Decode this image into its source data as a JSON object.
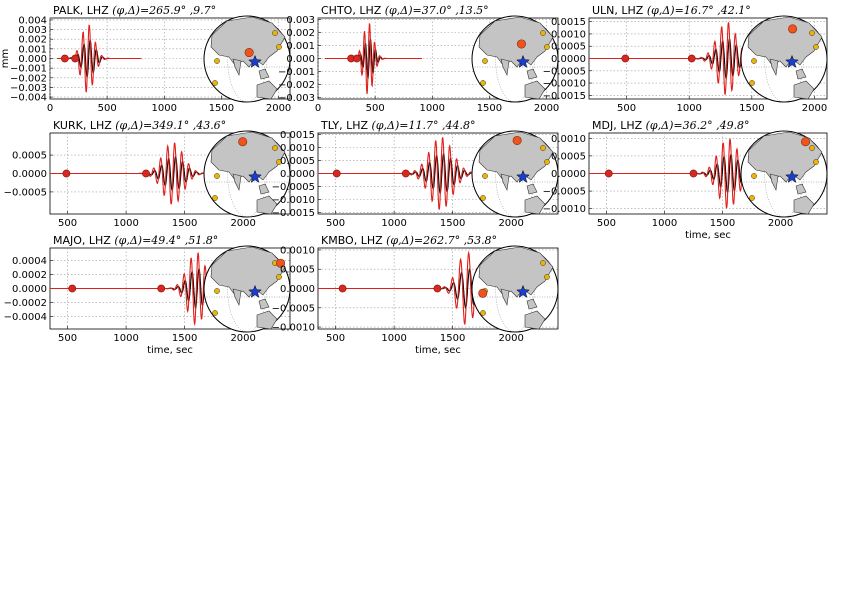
{
  "colors": {
    "observed": "#000000",
    "synthetic": "#e0201b",
    "pick_marker": "#d9261f",
    "globe_land": "#c4c4c4",
    "station": "#f0541e",
    "source": "#1a3fd0",
    "other_station": "#f0b400",
    "grid": "#9a9a9a"
  },
  "chart_data": [
    {
      "type": "line",
      "station": "PALK",
      "channel": "LHZ",
      "phi": "265.9",
      "delta": "9.7",
      "title_prefix": "PALK, LHZ",
      "title_params": "(φ,Δ)=265.9° ,9.7°",
      "ylabel": "mm",
      "xlabel": "",
      "xlim": [
        0,
        2100
      ],
      "ylim": [
        -0.0042,
        0.0042
      ],
      "xticks": [
        "0",
        "500",
        "1000",
        "1500",
        "2000"
      ],
      "yticks": [
        "0.004",
        "0.003",
        "0.002",
        "0.001",
        "0.000",
        "−0.001",
        "−0.002",
        "−0.003",
        "−0.004"
      ],
      "ytick_values": [
        0.004,
        0.003,
        0.002,
        0.001,
        0,
        -0.001,
        -0.002,
        -0.003,
        -0.004
      ],
      "xtick_values": [
        0,
        500,
        1000,
        1500,
        2000
      ],
      "pick_times": [
        130,
        220
      ],
      "wave": {
        "t0": 200,
        "t1": 450,
        "amp": 0.0036,
        "period": 55,
        "center": 330
      },
      "globe": {
        "station_dir": [
          0.05,
          0.15
        ],
        "station_on_rim": false
      }
    },
    {
      "type": "line",
      "station": "CHTO",
      "channel": "LHZ",
      "phi": "37.0",
      "delta": "13.5",
      "title_prefix": "CHTO, LHZ",
      "title_params": "(φ,Δ)=37.0° ,13.5°",
      "xlabel": "",
      "ylabel": "",
      "xlim": [
        0,
        2100
      ],
      "ylim": [
        -0.0031,
        0.0031
      ],
      "xticks": [
        "0",
        "500",
        "1000",
        "1500",
        "2000"
      ],
      "yticks": [
        "0.003",
        "0.002",
        "0.001",
        "0.000",
        "−0.001",
        "−0.002",
        "−0.003"
      ],
      "ytick_values": [
        0.003,
        0.002,
        0.001,
        0,
        -0.001,
        -0.002,
        -0.003
      ],
      "xtick_values": [
        0,
        500,
        1000,
        1500,
        2000
      ],
      "pick_times": [
        290,
        340
      ],
      "wave": {
        "t0": 360,
        "t1": 560,
        "amp": 0.0028,
        "period": 45,
        "center": 440
      },
      "globe": {
        "station_dir": [
          0.15,
          0.35
        ],
        "station_on_rim": false
      }
    },
    {
      "type": "line",
      "station": "ULN",
      "channel": "LHZ",
      "phi": "16.7",
      "delta": "42.1",
      "title_prefix": "ULN, LHZ",
      "title_params": "(φ,Δ)=16.7° ,42.1°",
      "xlabel": "",
      "ylabel": "",
      "xlim": [
        200,
        2100
      ],
      "ylim": [
        -0.00165,
        0.00165
      ],
      "xticks": [
        "500",
        "1000",
        "1500",
        "2000"
      ],
      "yticks": [
        "0.0015",
        "0.0010",
        "0.0005",
        "0.0000",
        "−0.0005",
        "−0.0010",
        "−0.0015"
      ],
      "ytick_values": [
        0.0015,
        0.001,
        0.0005,
        0,
        -0.0005,
        -0.001,
        -0.0015
      ],
      "xtick_values": [
        500,
        1000,
        1500,
        2000
      ],
      "pick_times": [
        490,
        1020
      ],
      "wave": {
        "t0": 1150,
        "t1": 1500,
        "amp": 0.0015,
        "period": 55,
        "center": 1300
      },
      "globe": {
        "station_dir": [
          0.2,
          0.7
        ],
        "station_on_rim": false
      }
    },
    {
      "type": "line",
      "station": "KURK",
      "channel": "LHZ",
      "phi": "349.1",
      "delta": "43.6",
      "title_prefix": "KURK, LHZ",
      "title_params": "(φ,Δ)=349.1° ,43.6°",
      "xlabel": "",
      "ylabel": "",
      "xlim": [
        350,
        2400
      ],
      "ylim": [
        -0.0011,
        0.0011
      ],
      "xticks": [
        "500",
        "1000",
        "1500",
        "2000"
      ],
      "yticks": [
        "0.0005",
        "0.0000",
        "−0.0005"
      ],
      "ytick_values": [
        0.0005,
        0,
        -0.0005
      ],
      "xtick_values": [
        500,
        1000,
        1500,
        2000
      ],
      "pick_times": [
        490,
        1170
      ],
      "wave": {
        "t0": 1250,
        "t1": 1650,
        "amp": 0.00085,
        "period": 60,
        "center": 1400
      },
      "globe": {
        "station_dir": [
          -0.1,
          0.75
        ],
        "station_on_rim": false
      }
    },
    {
      "type": "line",
      "station": "TLY",
      "channel": "LHZ",
      "phi": "11.7",
      "delta": "44.8",
      "title_prefix": "TLY, LHZ",
      "title_params": "(φ,Δ)=11.7° ,44.8°",
      "xlabel": "",
      "ylabel": "",
      "xlim": [
        350,
        2400
      ],
      "ylim": [
        -0.00155,
        0.00155
      ],
      "xticks": [
        "500",
        "1000",
        "1500",
        "2000"
      ],
      "yticks": [
        "0.0015",
        "0.0010",
        "0.0005",
        "0.0000",
        "−0.0005",
        "−0.0010",
        "−0.0015"
      ],
      "ytick_values": [
        0.0015,
        0.001,
        0.0005,
        0,
        -0.0005,
        -0.001,
        -0.0015
      ],
      "xtick_values": [
        500,
        1000,
        1500,
        2000
      ],
      "pick_times": [
        510,
        1100
      ],
      "wave": {
        "t0": 1200,
        "t1": 1650,
        "amp": 0.0014,
        "period": 60,
        "center": 1400
      },
      "globe": {
        "station_dir": [
          0.05,
          0.78
        ],
        "station_on_rim": false
      }
    },
    {
      "type": "line",
      "station": "MDJ",
      "channel": "LHZ",
      "phi": "36.2",
      "delta": "49.8",
      "title_prefix": "MDJ, LHZ",
      "title_params": "(φ,Δ)=36.2° ,49.8°",
      "xlabel": "time, sec",
      "ylabel": "",
      "xlim": [
        350,
        2400
      ],
      "ylim": [
        -0.00115,
        0.00115
      ],
      "xticks": [
        "500",
        "1000",
        "1500",
        "2000"
      ],
      "yticks": [
        "0.0010",
        "0.0005",
        "0.0000",
        "−0.0005",
        "−0.0010"
      ],
      "ytick_values": [
        0.001,
        0.0005,
        0,
        -0.0005,
        -0.001
      ],
      "xtick_values": [
        500,
        1000,
        1500,
        2000
      ],
      "pick_times": [
        520,
        1250
      ],
      "wave": {
        "t0": 1350,
        "t1": 1750,
        "amp": 0.001,
        "period": 60,
        "center": 1550
      },
      "globe": {
        "station_dir": [
          0.5,
          0.75
        ],
        "station_on_rim": true
      }
    },
    {
      "type": "line",
      "station": "MAJO",
      "channel": "LHZ",
      "phi": "49.4",
      "delta": "51.8",
      "title_prefix": "MAJO, LHZ",
      "title_params": "(φ,Δ)=49.4° ,51.8°",
      "xlabel": "time, sec",
      "ylabel": "",
      "xlim": [
        350,
        2400
      ],
      "ylim": [
        -0.00058,
        0.00058
      ],
      "xticks": [
        "500",
        "1000",
        "1500",
        "2000"
      ],
      "yticks": [
        "0.0004",
        "0.0002",
        "0.0000",
        "−0.0002",
        "−0.0004"
      ],
      "ytick_values": [
        0.0004,
        0.0002,
        0,
        -0.0002,
        -0.0004
      ],
      "xtick_values": [
        500,
        1000,
        1500,
        2000
      ],
      "pick_times": [
        540,
        1300
      ],
      "wave": {
        "t0": 1450,
        "t1": 1800,
        "amp": 0.00052,
        "period": 60,
        "center": 1600
      },
      "globe": {
        "station_dir": [
          0.78,
          0.6
        ],
        "station_on_rim": true
      }
    },
    {
      "type": "line",
      "station": "KMBO",
      "channel": "LHZ",
      "phi": "262.7",
      "delta": "53.8",
      "title_prefix": "KMBO, LHZ",
      "title_params": "(φ,Δ)=262.7° ,53.8°",
      "xlabel": "time, sec",
      "ylabel": "",
      "xlim": [
        350,
        2400
      ],
      "ylim": [
        -0.00105,
        0.00105
      ],
      "xticks": [
        "500",
        "1000",
        "1500",
        "2000"
      ],
      "yticks": [
        "0.0010",
        "0.0005",
        "0.0000",
        "−0.0005",
        "−0.0010"
      ],
      "ytick_values": [
        0.001,
        0.0005,
        0,
        -0.0005,
        -0.001
      ],
      "xtick_values": [
        500,
        1000,
        1500,
        2000
      ],
      "pick_times": [
        560,
        1370
      ],
      "wave": {
        "t0": 1450,
        "t1": 1800,
        "amp": 0.00095,
        "period": 70,
        "center": 1620
      },
      "globe": {
        "station_dir": [
          -0.75,
          -0.1
        ],
        "station_on_rim": true
      }
    }
  ]
}
